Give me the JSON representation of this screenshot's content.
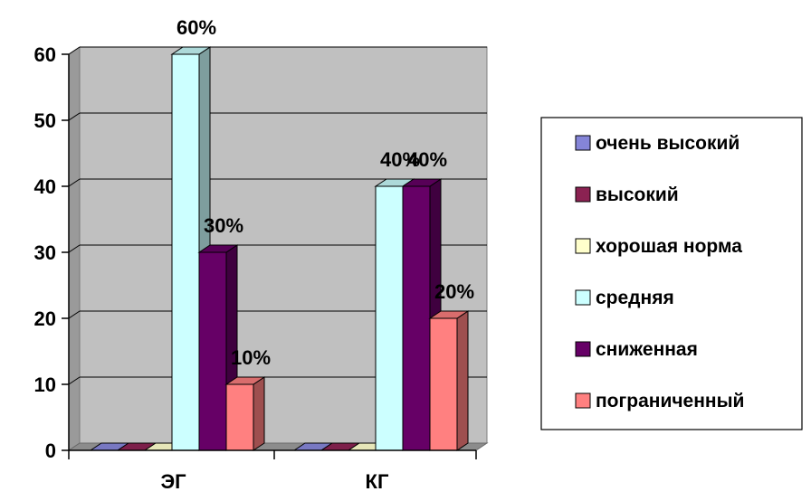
{
  "chart_data": {
    "type": "bar",
    "categories": [
      "ЭГ",
      "КГ"
    ],
    "series": [
      {
        "name": "очень высокий",
        "values": [
          0,
          0
        ],
        "color": "#8585d8"
      },
      {
        "name": "высокий",
        "values": [
          0,
          0
        ],
        "color": "#8b2252"
      },
      {
        "name": "хорошая норма",
        "values": [
          0,
          0
        ],
        "color": "#ffffcc"
      },
      {
        "name": "средняя",
        "values": [
          60,
          40
        ],
        "color": "#ccffff"
      },
      {
        "name": "сниженная",
        "values": [
          30,
          40
        ],
        "color": "#660066"
      },
      {
        "name": "пограниченный",
        "values": [
          10,
          20
        ],
        "color": "#ff8080"
      }
    ],
    "data_labels": [
      {
        "category": "ЭГ",
        "series": "средняя",
        "text": "60%"
      },
      {
        "category": "ЭГ",
        "series": "сниженная",
        "text": "30%"
      },
      {
        "category": "ЭГ",
        "series": "пограниченный",
        "text": "10%"
      },
      {
        "category": "КГ",
        "series": "средняя",
        "text": "40%"
      },
      {
        "category": "КГ",
        "series": "сниженная",
        "text": "40%"
      },
      {
        "category": "КГ",
        "series": "пограниченный",
        "text": "20%"
      }
    ],
    "yticks": [
      "0",
      "10",
      "20",
      "30",
      "40",
      "50",
      "60"
    ],
    "ylim": [
      0,
      60
    ],
    "grid": true,
    "three_d": true,
    "legend_position": "right"
  }
}
